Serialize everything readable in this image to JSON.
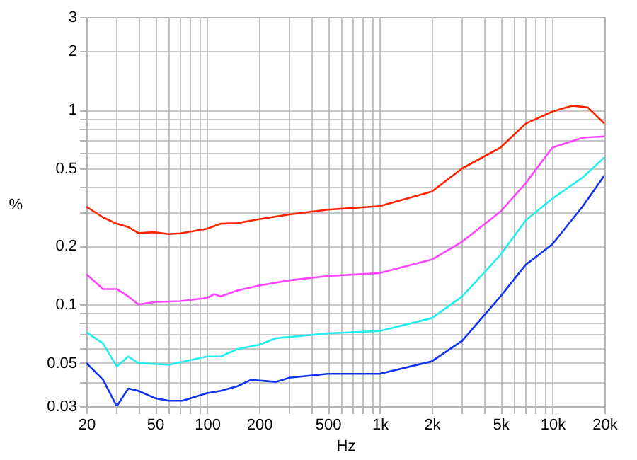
{
  "chart_data": {
    "type": "line",
    "xlabel": "Hz",
    "ylabel": "%",
    "log": "xy",
    "grid": true,
    "marker": "none",
    "line_style": "solid",
    "xlim": [
      20,
      20000
    ],
    "ylim": [
      0.03,
      3
    ],
    "xticks": [
      20,
      50,
      100,
      200,
      500,
      {
        "value": 1000,
        "label": "1k"
      },
      {
        "value": 2000,
        "label": "2k"
      },
      {
        "value": 5000,
        "label": "5k"
      },
      {
        "value": 10000,
        "label": "10k"
      },
      {
        "value": 20000,
        "label": "20k"
      },
      {
        "value": 30,
        "label": null
      },
      {
        "value": 40,
        "label": null
      },
      {
        "value": 60,
        "label": null
      },
      {
        "value": 70,
        "label": null
      },
      {
        "value": 80,
        "label": null
      },
      {
        "value": 90,
        "label": null
      },
      {
        "value": 300,
        "label": null
      },
      {
        "value": 400,
        "label": null
      },
      {
        "value": 600,
        "label": null
      },
      {
        "value": 700,
        "label": null
      },
      {
        "value": 800,
        "label": null
      },
      {
        "value": 900,
        "label": null
      },
      {
        "value": 3000,
        "label": null
      },
      {
        "value": 4000,
        "label": null
      },
      {
        "value": 6000,
        "label": null
      },
      {
        "value": 7000,
        "label": null
      },
      {
        "value": 8000,
        "label": null
      },
      {
        "value": 9000,
        "label": null
      }
    ],
    "yticks": [
      0.03,
      0.05,
      0.1,
      0.2,
      0.5,
      1,
      2,
      3,
      {
        "value": 0.04,
        "label": null
      },
      {
        "value": 0.06,
        "label": null
      },
      {
        "value": 0.07,
        "label": null
      },
      {
        "value": 0.08,
        "label": null
      },
      {
        "value": 0.09,
        "label": null
      },
      {
        "value": 0.3,
        "label": null
      },
      {
        "value": 0.4,
        "label": null
      },
      {
        "value": 0.6,
        "label": null
      },
      {
        "value": 0.7,
        "label": null
      },
      {
        "value": 0.8,
        "label": null
      },
      {
        "value": 0.9,
        "label": null
      }
    ],
    "series": [
      {
        "color": "#ff2200",
        "x": [
          20,
          25,
          30,
          35,
          40,
          50,
          60,
          70,
          100,
          120,
          150,
          200,
          300,
          500,
          1000,
          2000,
          3000,
          5000,
          7000,
          10000,
          13000,
          16000,
          20000
        ],
        "values": [
          0.318,
          0.28,
          0.26,
          0.25,
          0.233,
          0.235,
          0.23,
          0.232,
          0.245,
          0.26,
          0.262,
          0.274,
          0.29,
          0.307,
          0.32,
          0.38,
          0.5,
          0.64,
          0.85,
          0.98,
          1.05,
          1.03,
          0.85
        ]
      },
      {
        "color": "#ff44ff",
        "x": [
          20,
          25,
          30,
          35,
          40,
          50,
          70,
          100,
          110,
          120,
          150,
          200,
          300,
          500,
          1000,
          2000,
          3000,
          5000,
          7000,
          10000,
          15000,
          20000
        ],
        "values": [
          0.143,
          0.12,
          0.12,
          0.11,
          0.1,
          0.103,
          0.104,
          0.108,
          0.113,
          0.11,
          0.118,
          0.125,
          0.133,
          0.14,
          0.145,
          0.17,
          0.21,
          0.3,
          0.42,
          0.64,
          0.72,
          0.73
        ]
      },
      {
        "color": "#22eeee",
        "x": [
          20,
          25,
          30,
          35,
          40,
          60,
          100,
          120,
          150,
          200,
          250,
          500,
          1000,
          2000,
          3000,
          5000,
          7000,
          10000,
          15000,
          20000
        ],
        "values": [
          0.072,
          0.063,
          0.048,
          0.054,
          0.05,
          0.049,
          0.054,
          0.054,
          0.059,
          0.062,
          0.067,
          0.071,
          0.073,
          0.085,
          0.11,
          0.18,
          0.27,
          0.35,
          0.45,
          0.57
        ]
      },
      {
        "color": "#1133ee",
        "x": [
          20,
          25,
          30,
          35,
          40,
          50,
          60,
          72,
          100,
          120,
          150,
          180,
          250,
          300,
          500,
          1000,
          2000,
          3000,
          5000,
          7000,
          10000,
          15000,
          20000
        ],
        "values": [
          0.05,
          0.041,
          0.03,
          0.037,
          0.036,
          0.033,
          0.032,
          0.032,
          0.035,
          0.036,
          0.038,
          0.041,
          0.04,
          0.042,
          0.044,
          0.044,
          0.051,
          0.065,
          0.11,
          0.16,
          0.204,
          0.32,
          0.46
        ]
      }
    ]
  }
}
